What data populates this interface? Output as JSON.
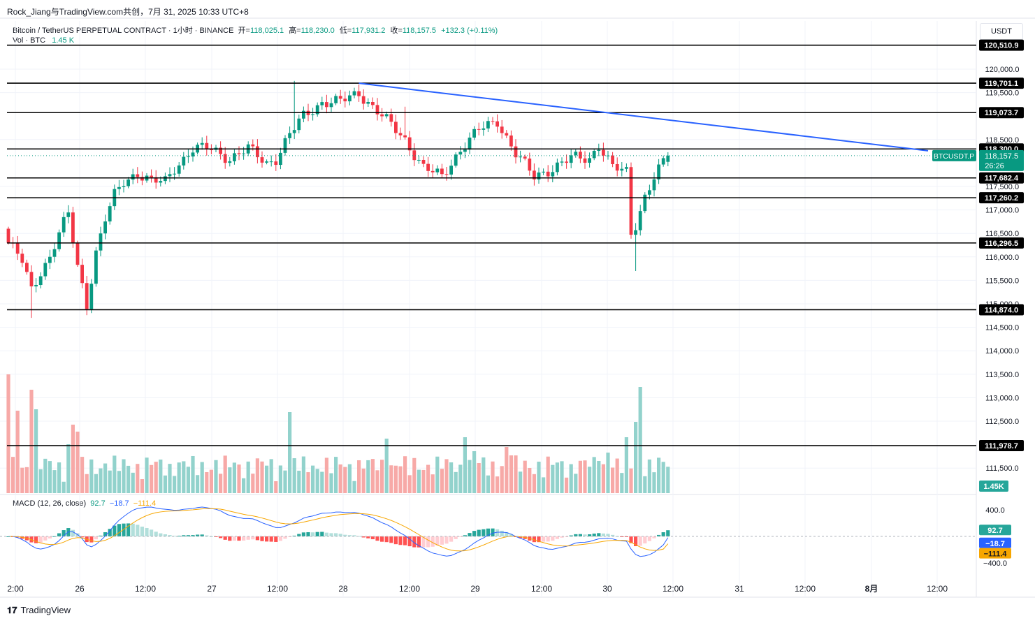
{
  "header": {
    "publisher": "Rock_Jiang与TradingView.com共创，7月 31, 2025 10:33 UTC+8"
  },
  "legend": {
    "symbol": "Bitcoin / TetherUS PERPETUAL CONTRACT · 1小时 · BINANCE",
    "open_label": "开=",
    "open": "118,025.1",
    "high_label": "高=",
    "high": "118,230.0",
    "low_label": "低=",
    "low": "117,931.2",
    "close_label": "收=",
    "close": "118,157.5",
    "change": "+132.3 (+0.11%)",
    "vol_label": "Vol · BTC",
    "vol_value": "1.45 K"
  },
  "macd_legend": {
    "label": "MACD (12, 26, close)",
    "hist": "92.7",
    "macd": "−18.7",
    "signal": "−111.4"
  },
  "currency": "USDT",
  "footer": {
    "logo_mark": "𝟏𝟕",
    "logo_text": "TradingView"
  },
  "colors": {
    "up": "#089981",
    "down": "#f23645",
    "up_vol": "#92d2cc",
    "down_vol": "#f7a9a7",
    "trendline": "#2962ff",
    "macd_line": "#2962ff",
    "signal_line": "#f7a600"
  },
  "chart_data": {
    "type": "candlestick",
    "price_ylim": [
      111000,
      121000
    ],
    "price_ticks": [
      "120,000.0",
      "119,500.0",
      "118,500.0",
      "117,500.0",
      "117,000.0",
      "116,500.0",
      "116,000.0",
      "115,500.0",
      "115,000.0",
      "114,500.0",
      "114,000.0",
      "113,500.0",
      "113,000.0",
      "112,500.0",
      "111,500.0"
    ],
    "x_ticks": [
      "2:00",
      "26",
      "12:00",
      "27",
      "12:00",
      "28",
      "12:00",
      "29",
      "12:00",
      "30",
      "12:00",
      "31",
      "12:00",
      "8月",
      "12:00"
    ],
    "horizontal_levels": [
      {
        "value": 120510.9,
        "label": "120,510.9"
      },
      {
        "value": 119701.1,
        "label": "119,701.1"
      },
      {
        "value": 119073.7,
        "label": "119,073.7"
      },
      {
        "value": 118300.0,
        "label": "118,300.0"
      },
      {
        "value": 117682.4,
        "label": "117,682.4"
      },
      {
        "value": 117260.2,
        "label": "117,260.2"
      },
      {
        "value": 116296.5,
        "label": "116,296.5"
      },
      {
        "value": 114874.0,
        "label": "114,874.0"
      },
      {
        "value": 111978.7,
        "label": "111,978.7"
      }
    ],
    "trendline": {
      "from": {
        "bar": 76,
        "price": 119700
      },
      "to": {
        "bar": 171,
        "price": 118200
      }
    },
    "last_price": {
      "symbol": "BTCUSDT.P",
      "price": "118,157.5",
      "countdown": "26:26"
    },
    "volume_last": "1.45K",
    "macd_axis": {
      "range": [
        -480,
        500
      ],
      "ticks": [
        "400.0",
        "−400.0"
      ]
    },
    "macd_last": {
      "hist": "92.7",
      "macd": "−18.7",
      "signal": "−111.4"
    },
    "anchors": [
      [
        0,
        116300
      ],
      [
        3,
        115900
      ],
      [
        5,
        115300
      ],
      [
        7,
        115700
      ],
      [
        9,
        116000
      ],
      [
        11,
        116500
      ],
      [
        13,
        116900
      ],
      [
        15,
        115800
      ],
      [
        17,
        115000
      ],
      [
        19,
        116100
      ],
      [
        21,
        116800
      ],
      [
        23,
        117300
      ],
      [
        25,
        117600
      ],
      [
        28,
        117800
      ],
      [
        31,
        117600
      ],
      [
        34,
        117600
      ],
      [
        36,
        117900
      ],
      [
        40,
        118300
      ],
      [
        44,
        118300
      ],
      [
        48,
        118100
      ],
      [
        52,
        118300
      ],
      [
        56,
        118000
      ],
      [
        58,
        118100
      ],
      [
        61,
        118600
      ],
      [
        64,
        119000
      ],
      [
        68,
        119300
      ],
      [
        72,
        119300
      ],
      [
        76,
        119500
      ],
      [
        78,
        119300
      ],
      [
        82,
        118900
      ],
      [
        86,
        118500
      ],
      [
        90,
        117900
      ],
      [
        94,
        117700
      ],
      [
        98,
        118300
      ],
      [
        102,
        118700
      ],
      [
        106,
        118900
      ],
      [
        110,
        118200
      ],
      [
        114,
        117700
      ],
      [
        118,
        117900
      ],
      [
        122,
        118100
      ],
      [
        126,
        118100
      ],
      [
        128,
        118400
      ],
      [
        131,
        117900
      ],
      [
        134,
        117800
      ],
      [
        135,
        116500
      ],
      [
        136,
        116700
      ],
      [
        138,
        117300
      ],
      [
        140,
        117700
      ],
      [
        142,
        118000
      ],
      [
        143,
        118157
      ]
    ],
    "volume_hint": "per-bar volumes in BTC, largest spikes near bars 0, 5, 61, 82, 108, 137"
  }
}
